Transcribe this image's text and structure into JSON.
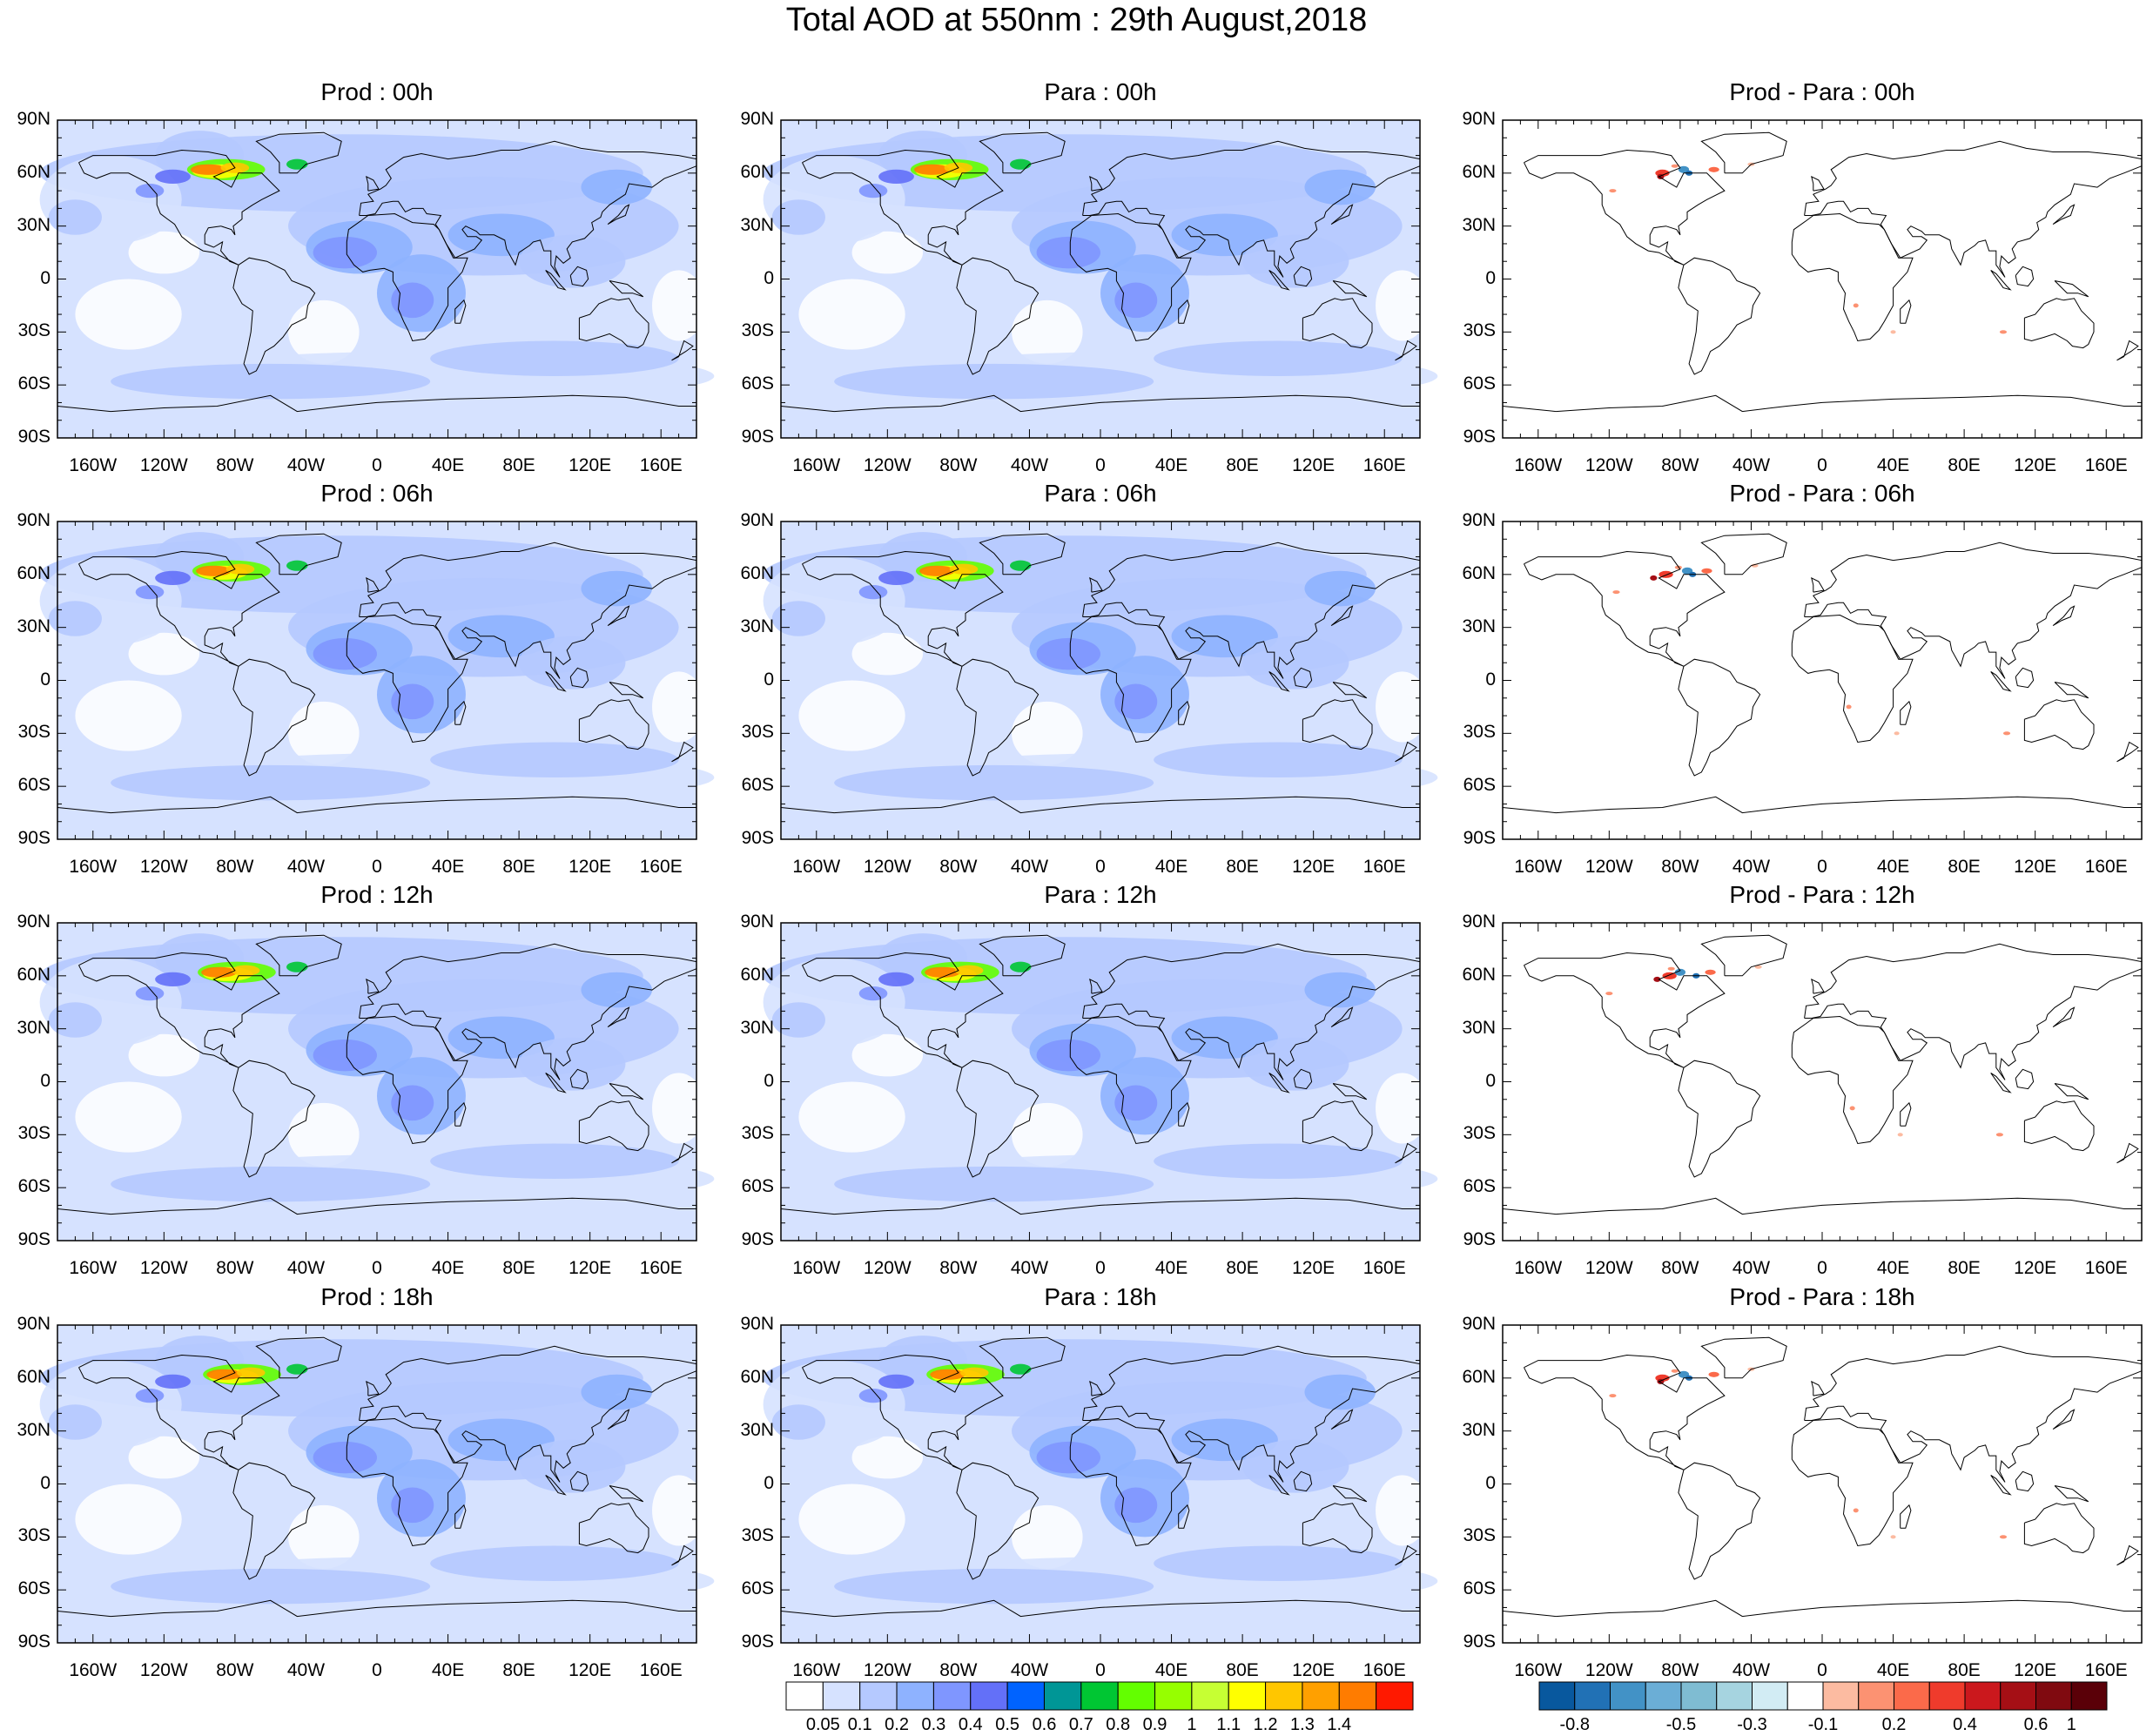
{
  "title": "Total AOD at 550nm : 29th August,2018",
  "panels": [
    {
      "title": "Prod : 00h",
      "kind": "aod",
      "row": 0,
      "col": 0
    },
    {
      "title": "Para : 00h",
      "kind": "aod",
      "row": 0,
      "col": 1
    },
    {
      "title": "Prod - Para : 00h",
      "kind": "diff",
      "row": 0,
      "col": 2
    },
    {
      "title": "Prod : 06h",
      "kind": "aod",
      "row": 1,
      "col": 0
    },
    {
      "title": "Para : 06h",
      "kind": "aod",
      "row": 1,
      "col": 1
    },
    {
      "title": "Prod - Para : 06h",
      "kind": "diff",
      "row": 1,
      "col": 2
    },
    {
      "title": "Prod : 12h",
      "kind": "aod",
      "row": 2,
      "col": 0
    },
    {
      "title": "Para : 12h",
      "kind": "aod",
      "row": 2,
      "col": 1
    },
    {
      "title": "Prod - Para : 12h",
      "kind": "diff",
      "row": 2,
      "col": 2
    },
    {
      "title": "Prod : 18h",
      "kind": "aod",
      "row": 3,
      "col": 0
    },
    {
      "title": "Para : 18h",
      "kind": "aod",
      "row": 3,
      "col": 1
    },
    {
      "title": "Prod - Para : 18h",
      "kind": "diff",
      "row": 3,
      "col": 2
    }
  ],
  "lat_labels": [
    "90N",
    "60N",
    "30N",
    "0",
    "30S",
    "60S",
    "90S"
  ],
  "lon_labels": [
    "160W",
    "120W",
    "80W",
    "40W",
    "0",
    "40E",
    "80E",
    "120E",
    "160E"
  ],
  "lon_values": [
    -160,
    -120,
    -80,
    -40,
    0,
    40,
    80,
    120,
    160
  ],
  "lat_values": [
    90,
    60,
    30,
    0,
    -30,
    -60,
    -90
  ],
  "aod_colorbar": {
    "colors": [
      "#ffffff",
      "#d6e2ff",
      "#b5c9ff",
      "#8eb2ff",
      "#7f96ff",
      "#6370f8",
      "#0063ff",
      "#009696",
      "#00c633",
      "#63ff00",
      "#96ff00",
      "#c6ff33",
      "#ffff00",
      "#ffc600",
      "#ffa000",
      "#ff7c00",
      "#ff1900"
    ],
    "labels": [
      "0.05",
      "0.1",
      "0.2",
      "0.3",
      "0.4",
      "0.5",
      "0.6",
      "0.7",
      "0.8",
      "0.9",
      "1",
      "1.1",
      "1.2",
      "1.3",
      "1.4"
    ]
  },
  "diff_colorbar": {
    "colors": [
      "#08589e",
      "#2171b5",
      "#4292c6",
      "#6baed6",
      "#7fbcd2",
      "#a6d4e0",
      "#d2ecf4",
      "#ffffff",
      "#fcbba1",
      "#fc9272",
      "#fb6a4a",
      "#ef3b2c",
      "#cb181d",
      "#a50f15",
      "#800a10",
      "#5a0008"
    ],
    "labels": [
      "-0.8",
      "-0.5",
      "-0.3",
      "-0.1",
      "0.2",
      "0.4",
      "0.6",
      "1"
    ]
  }
}
